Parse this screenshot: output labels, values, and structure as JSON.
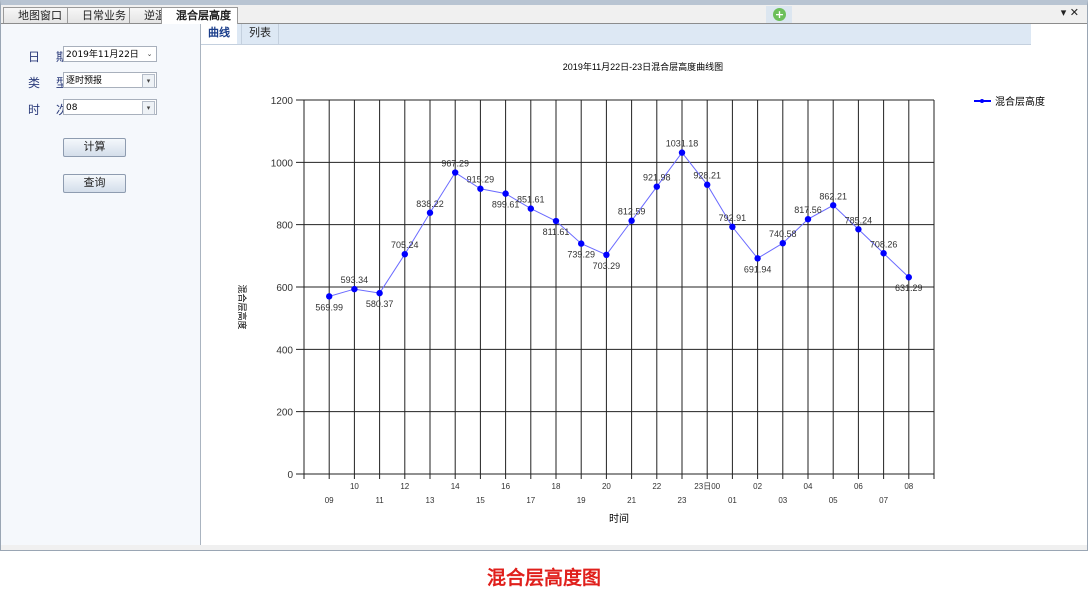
{
  "tabs": [
    {
      "label": "地图窗口"
    },
    {
      "label": "日常业务"
    },
    {
      "label": "逆温"
    },
    {
      "label": "混合层高度",
      "active": true
    }
  ],
  "window_controls": {
    "menu": "▾",
    "close": "✕"
  },
  "form": {
    "date_label": "日 期",
    "date_value": "2019年11月22日",
    "type_label": "类 型",
    "type_value": "逐时预报",
    "hour_label": "时 次",
    "hour_value": "08",
    "compute_label": "计算",
    "query_label": "查询"
  },
  "subtabs": [
    {
      "label": "曲线",
      "active": true
    },
    {
      "label": "列表"
    }
  ],
  "chart_data": {
    "type": "line",
    "title": "2019年11月22日-23日混合层高度曲线图",
    "xlabel": "时间",
    "ylabel": "混合层高度",
    "categories": [
      "09",
      "10",
      "11",
      "12",
      "13",
      "14",
      "15",
      "16",
      "17",
      "18",
      "19",
      "20",
      "21",
      "22",
      "23",
      "23日00",
      "01",
      "02",
      "03",
      "04",
      "05",
      "06",
      "07",
      "08"
    ],
    "series": [
      {
        "name": "混合层高度",
        "color": "#0000ff",
        "values": [
          569.99,
          593.34,
          580.37,
          705.24,
          838.22,
          967.29,
          915.29,
          899.61,
          851.61,
          811.61,
          739.29,
          703.29,
          812.59,
          921.98,
          1031.18,
          928.21,
          792.91,
          691.94,
          740.58,
          817.56,
          862.21,
          785.24,
          708.26,
          631.29
        ]
      }
    ],
    "ylim": [
      0,
      1200
    ],
    "yticks": [
      0,
      200,
      400,
      600,
      800,
      1000,
      1200
    ],
    "grid": true,
    "legend": "top-right"
  },
  "caption": "混合层高度图"
}
